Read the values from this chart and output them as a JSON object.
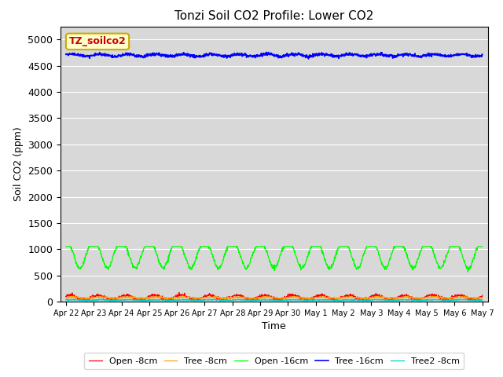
{
  "title": "Tonzi Soil CO2 Profile: Lower CO2",
  "xlabel": "Time",
  "ylabel": "Soil CO2 (ppm)",
  "ylim": [
    0,
    5250
  ],
  "yticks": [
    0,
    500,
    1000,
    1500,
    2000,
    2500,
    3000,
    3500,
    4000,
    4500,
    5000
  ],
  "bg_color": "#d8d8d8",
  "fig_color": "#ffffff",
  "grid_color": "#ffffff",
  "series": [
    {
      "label": "Open -8cm",
      "color": "#ff0000"
    },
    {
      "label": "Tree -8cm",
      "color": "#ffa500"
    },
    {
      "label": "Open -16cm",
      "color": "#00ff00"
    },
    {
      "label": "Tree -16cm",
      "color": "#0000ff"
    },
    {
      "label": "Tree2 -8cm",
      "color": "#00cccc"
    }
  ],
  "tag_label": "TZ_soilco2",
  "tag_bg": "#ffffcc",
  "tag_color": "#cc0000",
  "tag_edge": "#ccaa00",
  "n_points": 1440,
  "total_days": 15
}
